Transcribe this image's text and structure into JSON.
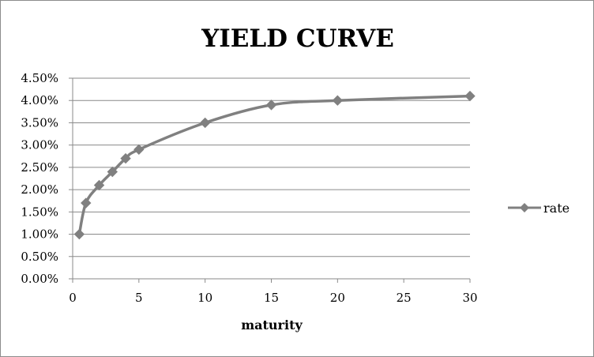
{
  "chart_data": {
    "type": "line",
    "title": "YIELD CURVE",
    "xlabel": "maturity",
    "ylabel": "",
    "xlim": [
      0,
      30
    ],
    "ylim": [
      0,
      4.5
    ],
    "x_ticks": [
      0,
      5,
      10,
      15,
      20,
      25,
      30
    ],
    "y_ticks": [
      0,
      0.5,
      1.0,
      1.5,
      2.0,
      2.5,
      3.0,
      3.5,
      4.0,
      4.5
    ],
    "y_tick_labels": [
      "0.00%",
      "0.50%",
      "1.00%",
      "1.50%",
      "2.00%",
      "2.50%",
      "3.00%",
      "3.50%",
      "4.00%",
      "4.50%"
    ],
    "y_unit": "%",
    "grid": "horizontal",
    "smooth": true,
    "legend_position": "right",
    "series": [
      {
        "name": "rate",
        "color": "#808080",
        "marker": "diamond",
        "x": [
          0.5,
          1,
          2,
          3,
          4,
          5,
          10,
          15,
          20,
          30
        ],
        "y": [
          1.0,
          1.7,
          2.1,
          2.4,
          2.7,
          2.9,
          3.5,
          3.9,
          4.0,
          4.1
        ]
      }
    ]
  }
}
